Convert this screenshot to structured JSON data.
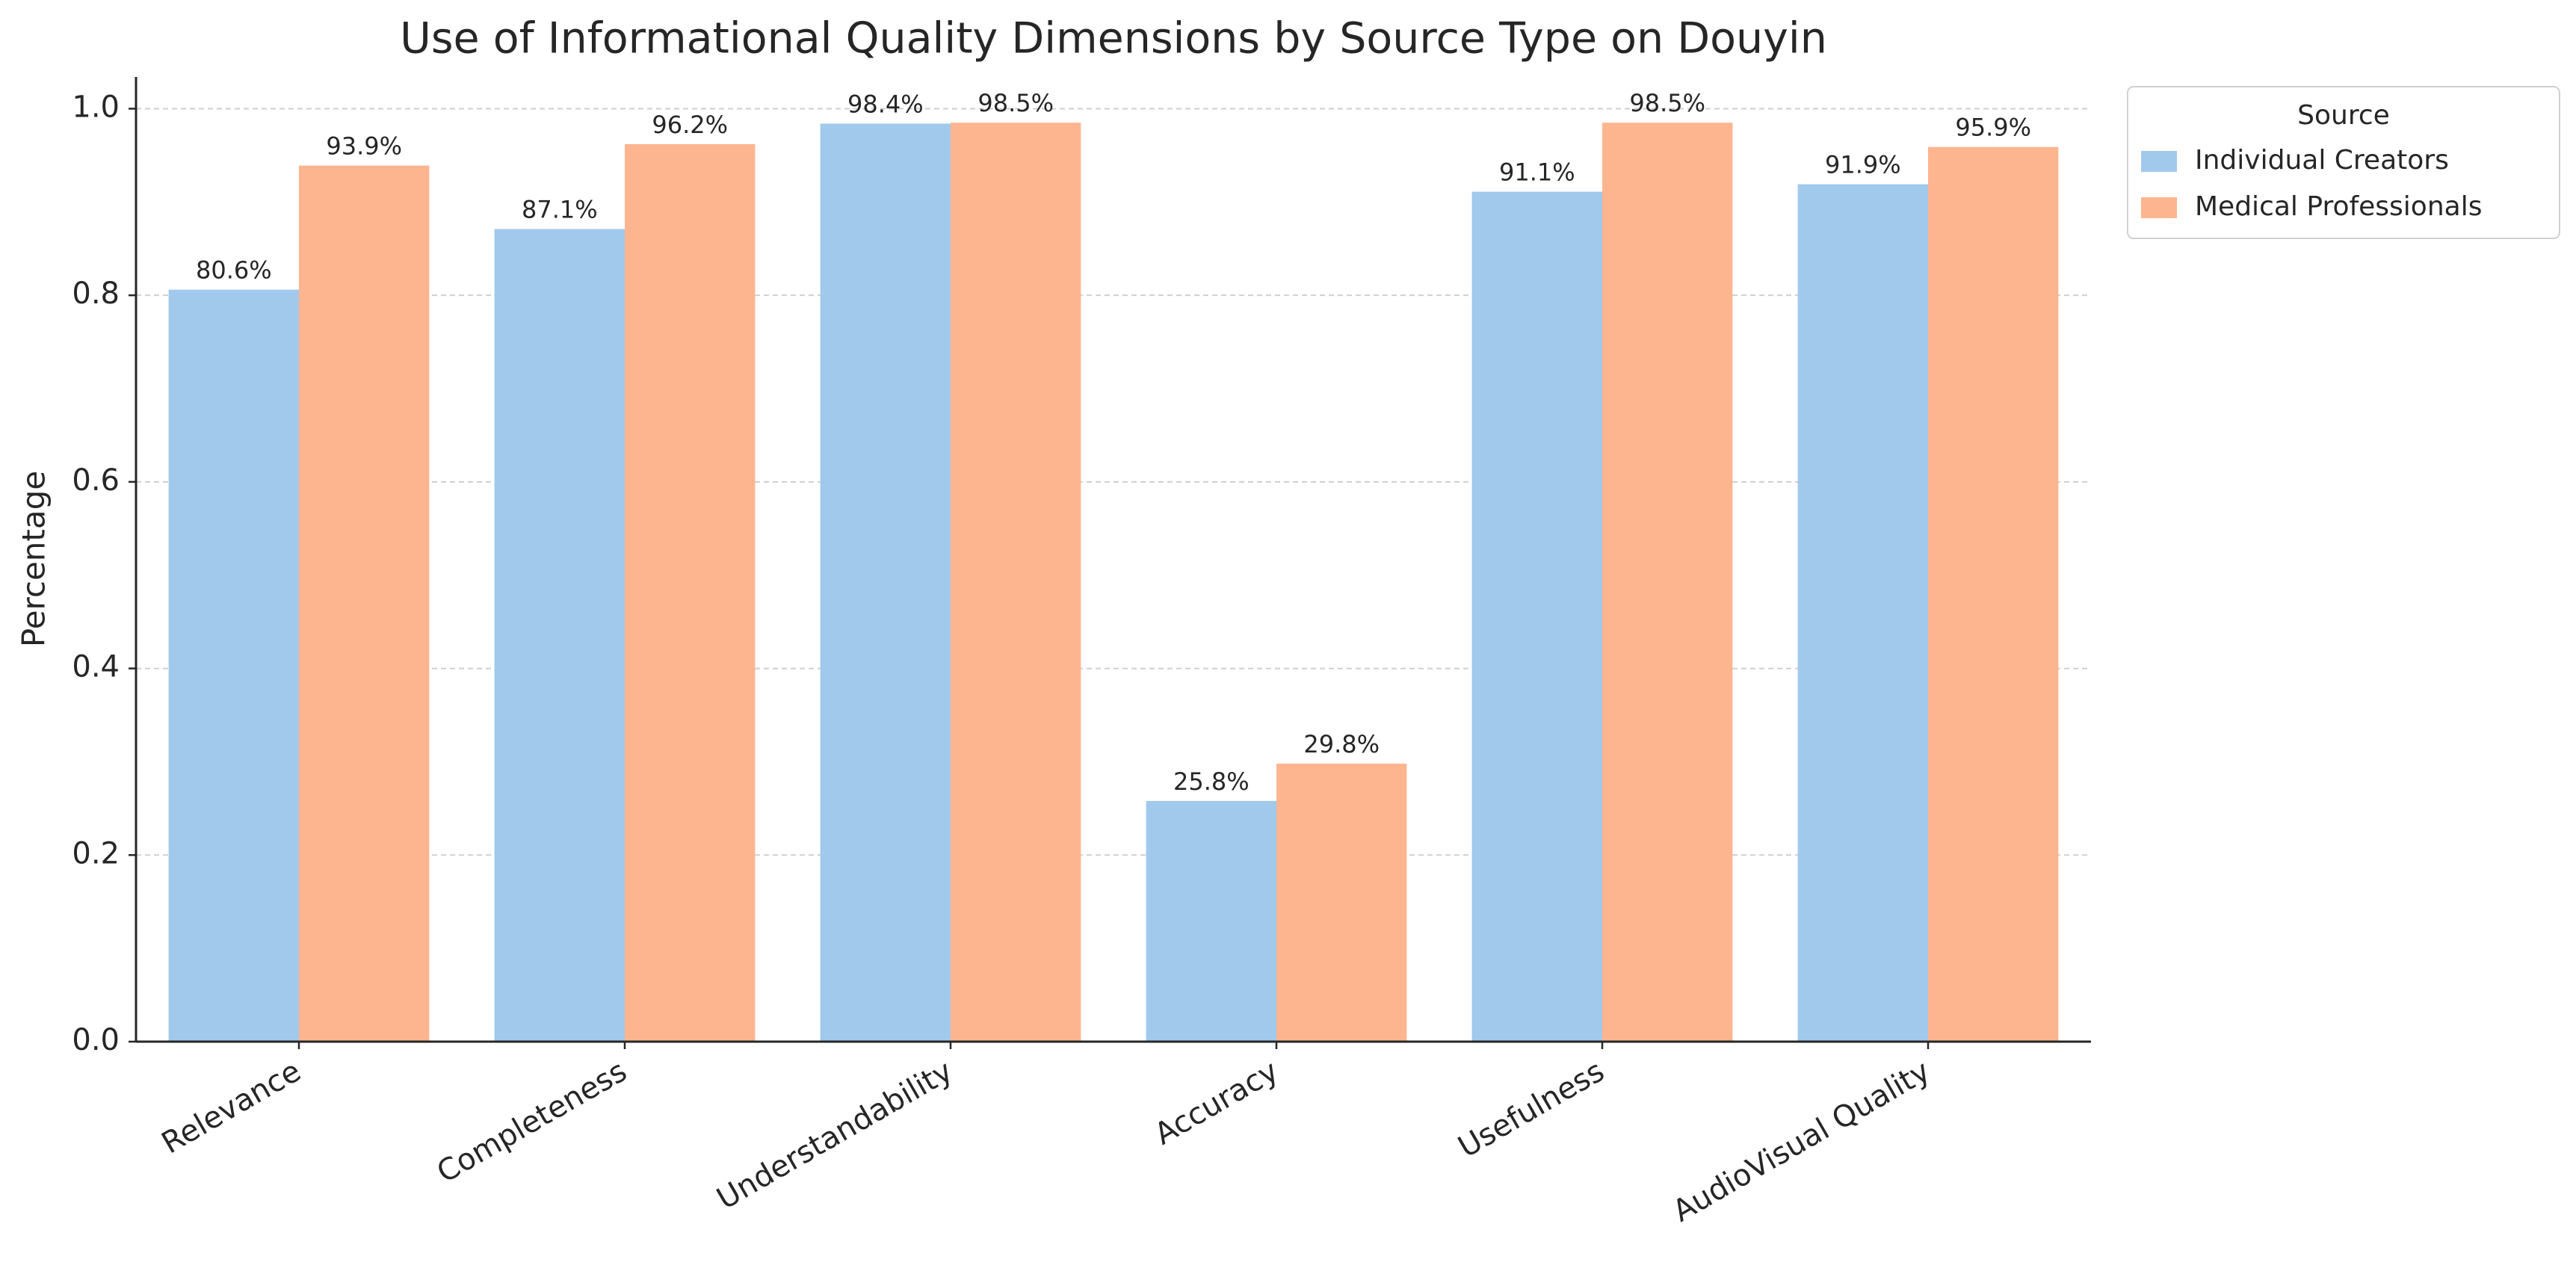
{
  "chart_data": {
    "type": "bar",
    "title": "Use of Informational Quality Dimensions by Source Type on Douyin",
    "y_label": "Percentage",
    "categories": [
      "Relevance",
      "Completeness",
      "Understandability",
      "Accuracy",
      "Usefulness",
      "AudioVisual Quality"
    ],
    "series": [
      {
        "name": "Individual Creators",
        "color": "#a1c9ec",
        "values": [
          0.806,
          0.871,
          0.984,
          0.258,
          0.911,
          0.919
        ],
        "value_labels": [
          "80.6%",
          "87.1%",
          "98.4%",
          "25.8%",
          "91.1%",
          "91.9%"
        ]
      },
      {
        "name": "Medical Professionals",
        "color": "#fdb590",
        "values": [
          0.939,
          0.962,
          0.985,
          0.298,
          0.985,
          0.959
        ],
        "value_labels": [
          "93.9%",
          "96.2%",
          "98.5%",
          "29.8%",
          "98.5%",
          "95.9%"
        ]
      }
    ],
    "ylim": [
      0,
      1.034
    ],
    "yticks": [
      {
        "value": 0,
        "label": "0.0"
      },
      0.2,
      0.4,
      0.6,
      0.8,
      {
        "value": 1,
        "label": "1.0"
      }
    ],
    "grid": true,
    "legend_title": "Source",
    "legend_position": "outside-right-top"
  }
}
